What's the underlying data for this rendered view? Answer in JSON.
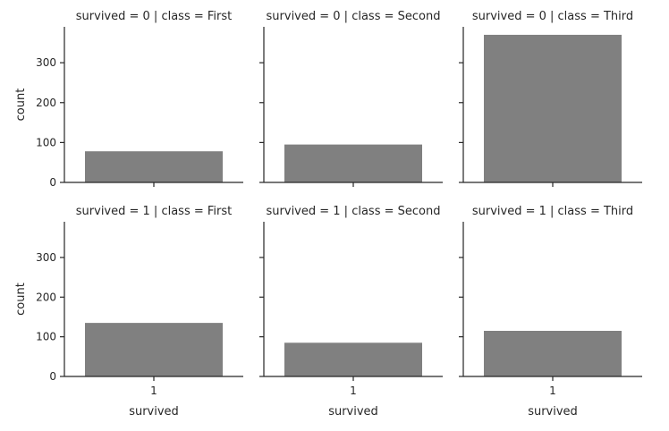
{
  "chart_data": {
    "type": "bar",
    "ylim": [
      0,
      390
    ],
    "y_ticks": [
      0,
      100,
      200,
      300
    ],
    "grid": false,
    "bar_color": "#808080",
    "ylabel": "count",
    "xlabel": "survived",
    "x_category": "1",
    "panels": [
      {
        "row": 0,
        "col": 0,
        "title": "survived = 0 | class = First",
        "value": 78
      },
      {
        "row": 0,
        "col": 1,
        "title": "survived = 0 | class = Second",
        "value": 95
      },
      {
        "row": 0,
        "col": 2,
        "title": "survived = 0 | class = Third",
        "value": 370
      },
      {
        "row": 1,
        "col": 0,
        "title": "survived = 1 | class = First",
        "value": 135
      },
      {
        "row": 1,
        "col": 1,
        "title": "survived = 1 | class = Second",
        "value": 85
      },
      {
        "row": 1,
        "col": 2,
        "title": "survived = 1 | class = Third",
        "value": 115
      }
    ]
  }
}
